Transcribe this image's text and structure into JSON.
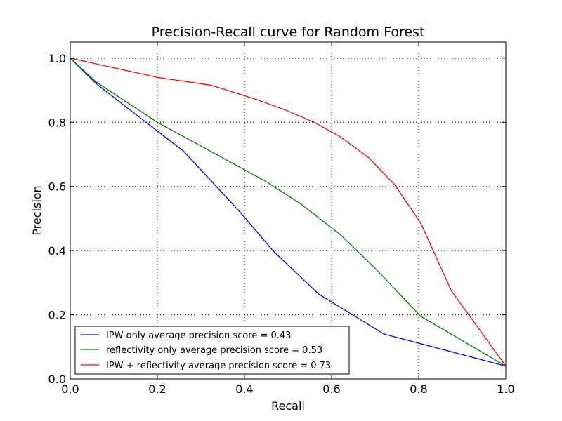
{
  "chart_data": {
    "type": "line",
    "title": "Precision-Recall curve for Random Forest",
    "xlabel": "Recall",
    "ylabel": "Precision",
    "xlim": [
      0.0,
      1.0
    ],
    "ylim": [
      0.0,
      1.05
    ],
    "xticks": [
      "0.0",
      "0.2",
      "0.4",
      "0.6",
      "0.8",
      "1.0"
    ],
    "yticks": [
      "0.0",
      "0.2",
      "0.4",
      "0.6",
      "0.8",
      "1.0"
    ],
    "grid": true,
    "legend_position": "lower-left",
    "series": [
      {
        "name": "IPW only average precision score = 0.43",
        "color": "#0000ff",
        "x": [
          0.0,
          0.06,
          0.15,
          0.26,
          0.39,
          0.465,
          0.57,
          0.72,
          1.0
        ],
        "y": [
          1.0,
          0.92,
          0.825,
          0.71,
          0.52,
          0.4,
          0.265,
          0.14,
          0.04
        ]
      },
      {
        "name": "reflectivity only average precision score = 0.53",
        "color": "#008000",
        "x": [
          0.0,
          0.06,
          0.2,
          0.45,
          0.53,
          0.62,
          0.7,
          0.805,
          1.0
        ],
        "y": [
          1.0,
          0.925,
          0.8,
          0.615,
          0.545,
          0.45,
          0.345,
          0.195,
          0.04
        ]
      },
      {
        "name": "IPW + reflectivity average precision score = 0.73",
        "color": "#ff0000",
        "x": [
          0.0,
          0.2,
          0.325,
          0.43,
          0.5,
          0.56,
          0.62,
          0.685,
          0.745,
          0.805,
          0.875,
          1.0
        ],
        "y": [
          1.0,
          0.94,
          0.915,
          0.87,
          0.835,
          0.8,
          0.755,
          0.69,
          0.605,
          0.485,
          0.275,
          0.04
        ]
      }
    ]
  }
}
